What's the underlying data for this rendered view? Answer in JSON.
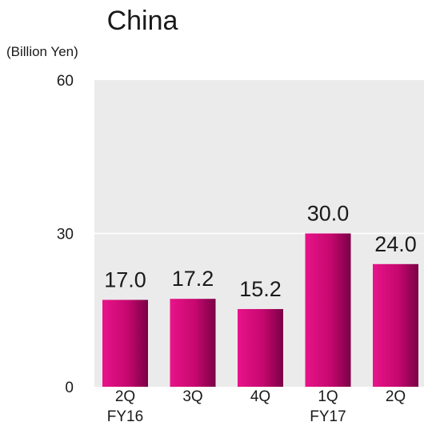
{
  "chart_data": {
    "type": "bar",
    "title": "China",
    "unit_label": "(Billion Yen)",
    "categories": [
      "2Q",
      "3Q",
      "4Q",
      "1Q",
      "2Q"
    ],
    "fiscal_year_labels": [
      "FY16",
      "",
      "",
      "FY17",
      ""
    ],
    "values": [
      17.0,
      17.2,
      15.2,
      30.0,
      24.0
    ],
    "value_labels": [
      "17.0",
      "17.2",
      "15.2",
      "30.0",
      "24.0"
    ],
    "ylim": [
      0,
      60
    ],
    "yticks": [
      0,
      30,
      60
    ],
    "grid": true,
    "colors": {
      "bar_light": "#e8138a",
      "bar_mid": "#c6086f",
      "bar_dark": "#7a0046",
      "plot_background": "#ebebeb",
      "gridline": "#ffffff"
    }
  }
}
